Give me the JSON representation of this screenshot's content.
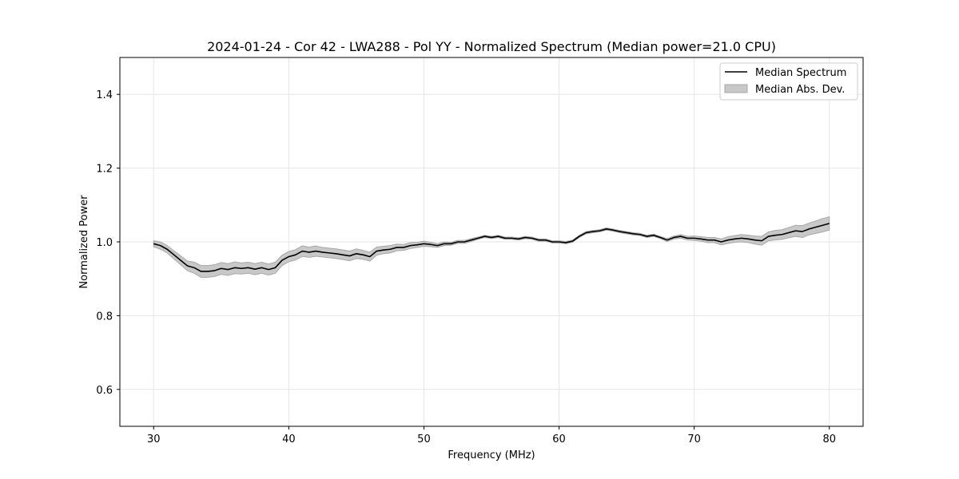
{
  "chart_data": {
    "type": "line",
    "title": "2024-01-24 - Cor 42 - LWA288 - Pol YY - Normalized Spectrum (Median power=21.0 CPU)",
    "xlabel": "Frequency (MHz)",
    "ylabel": "Normalized Power",
    "xlim": [
      27.5,
      82.5
    ],
    "ylim": [
      0.5,
      1.5
    ],
    "xticks": [
      30,
      40,
      50,
      60,
      70,
      80
    ],
    "yticks": [
      0.6,
      0.8,
      1.0,
      1.2,
      1.4
    ],
    "xtick_labels": [
      "30",
      "40",
      "50",
      "60",
      "70",
      "80"
    ],
    "ytick_labels": [
      "0.6",
      "0.8",
      "1.0",
      "1.2",
      "1.4"
    ],
    "grid": true,
    "legend_position": "top-right",
    "legend": [
      "Median Spectrum",
      "Median Abs. Dev."
    ],
    "colors": {
      "line": "#000000",
      "band": "#c8c8c8",
      "band_edge": "#a8a8a8",
      "grid": "#e6e6e6"
    },
    "series": [
      {
        "name": "Median Spectrum",
        "x": [
          30,
          30.5,
          31,
          31.5,
          32,
          32.5,
          33,
          33.5,
          34,
          34.5,
          35,
          35.5,
          36,
          36.5,
          37,
          37.5,
          38,
          38.5,
          39,
          39.5,
          40,
          40.5,
          41,
          41.5,
          42,
          42.5,
          43,
          43.5,
          44,
          44.5,
          45,
          45.5,
          46,
          46.5,
          47,
          47.5,
          48,
          48.5,
          49,
          49.5,
          50,
          50.5,
          51,
          51.5,
          52,
          52.5,
          53,
          53.5,
          54,
          54.5,
          55,
          55.5,
          56,
          56.5,
          57,
          57.5,
          58,
          58.5,
          59,
          59.5,
          60,
          60.5,
          61,
          61.5,
          62,
          62.5,
          63,
          63.5,
          64,
          64.5,
          65,
          65.5,
          66,
          66.5,
          67,
          67.5,
          68,
          68.5,
          69,
          69.5,
          70,
          70.5,
          71,
          71.5,
          72,
          72.5,
          73,
          73.5,
          74,
          74.5,
          75,
          75.5,
          76,
          76.5,
          77,
          77.5,
          78,
          78.5,
          79,
          79.5,
          80
        ],
        "values": [
          0.995,
          0.99,
          0.98,
          0.965,
          0.95,
          0.935,
          0.93,
          0.92,
          0.92,
          0.922,
          0.928,
          0.925,
          0.93,
          0.928,
          0.93,
          0.926,
          0.93,
          0.925,
          0.93,
          0.95,
          0.96,
          0.965,
          0.975,
          0.972,
          0.975,
          0.972,
          0.97,
          0.968,
          0.965,
          0.962,
          0.968,
          0.965,
          0.96,
          0.975,
          0.978,
          0.98,
          0.985,
          0.985,
          0.99,
          0.992,
          0.995,
          0.993,
          0.99,
          0.995,
          0.995,
          1.0,
          1.0,
          1.005,
          1.01,
          1.015,
          1.012,
          1.015,
          1.01,
          1.01,
          1.008,
          1.012,
          1.01,
          1.005,
          1.005,
          1.0,
          1.0,
          0.998,
          1.002,
          1.015,
          1.025,
          1.028,
          1.03,
          1.035,
          1.032,
          1.028,
          1.025,
          1.022,
          1.02,
          1.015,
          1.018,
          1.012,
          1.005,
          1.012,
          1.015,
          1.01,
          1.01,
          1.008,
          1.005,
          1.005,
          1.0,
          1.005,
          1.008,
          1.01,
          1.008,
          1.005,
          1.003,
          1.015,
          1.018,
          1.02,
          1.025,
          1.03,
          1.028,
          1.035,
          1.04,
          1.045,
          1.05
        ]
      },
      {
        "name": "Median Abs. Dev.",
        "x": [
          30,
          30.5,
          31,
          31.5,
          32,
          32.5,
          33,
          33.5,
          34,
          34.5,
          35,
          35.5,
          36,
          36.5,
          37,
          37.5,
          38,
          38.5,
          39,
          39.5,
          40,
          40.5,
          41,
          41.5,
          42,
          42.5,
          43,
          43.5,
          44,
          44.5,
          45,
          45.5,
          46,
          46.5,
          47,
          47.5,
          48,
          48.5,
          49,
          49.5,
          50,
          50.5,
          51,
          51.5,
          52,
          52.5,
          53,
          53.5,
          54,
          54.5,
          55,
          55.5,
          56,
          56.5,
          57,
          57.5,
          58,
          58.5,
          59,
          59.5,
          60,
          60.5,
          61,
          61.5,
          62,
          62.5,
          63,
          63.5,
          64,
          64.5,
          65,
          65.5,
          66,
          66.5,
          67,
          67.5,
          68,
          68.5,
          69,
          69.5,
          70,
          70.5,
          71,
          71.5,
          72,
          72.5,
          73,
          73.5,
          74,
          74.5,
          75,
          75.5,
          76,
          76.5,
          77,
          77.5,
          78,
          78.5,
          79,
          79.5,
          80
        ],
        "halfwidth": [
          0.008,
          0.01,
          0.01,
          0.011,
          0.012,
          0.013,
          0.015,
          0.016,
          0.016,
          0.016,
          0.016,
          0.016,
          0.016,
          0.015,
          0.015,
          0.015,
          0.015,
          0.015,
          0.015,
          0.014,
          0.014,
          0.014,
          0.014,
          0.014,
          0.014,
          0.013,
          0.013,
          0.013,
          0.013,
          0.013,
          0.013,
          0.012,
          0.012,
          0.011,
          0.01,
          0.01,
          0.009,
          0.008,
          0.008,
          0.007,
          0.007,
          0.006,
          0.005,
          0.005,
          0.004,
          0.004,
          0.004,
          0.004,
          0.003,
          0.003,
          0.003,
          0.003,
          0.003,
          0.003,
          0.003,
          0.003,
          0.003,
          0.003,
          0.003,
          0.003,
          0.003,
          0.003,
          0.003,
          0.003,
          0.003,
          0.003,
          0.003,
          0.003,
          0.003,
          0.003,
          0.003,
          0.003,
          0.003,
          0.003,
          0.003,
          0.003,
          0.004,
          0.004,
          0.005,
          0.005,
          0.006,
          0.006,
          0.007,
          0.007,
          0.008,
          0.009,
          0.009,
          0.01,
          0.01,
          0.011,
          0.012,
          0.012,
          0.013,
          0.013,
          0.014,
          0.015,
          0.016,
          0.016,
          0.017,
          0.018,
          0.018
        ]
      }
    ]
  }
}
